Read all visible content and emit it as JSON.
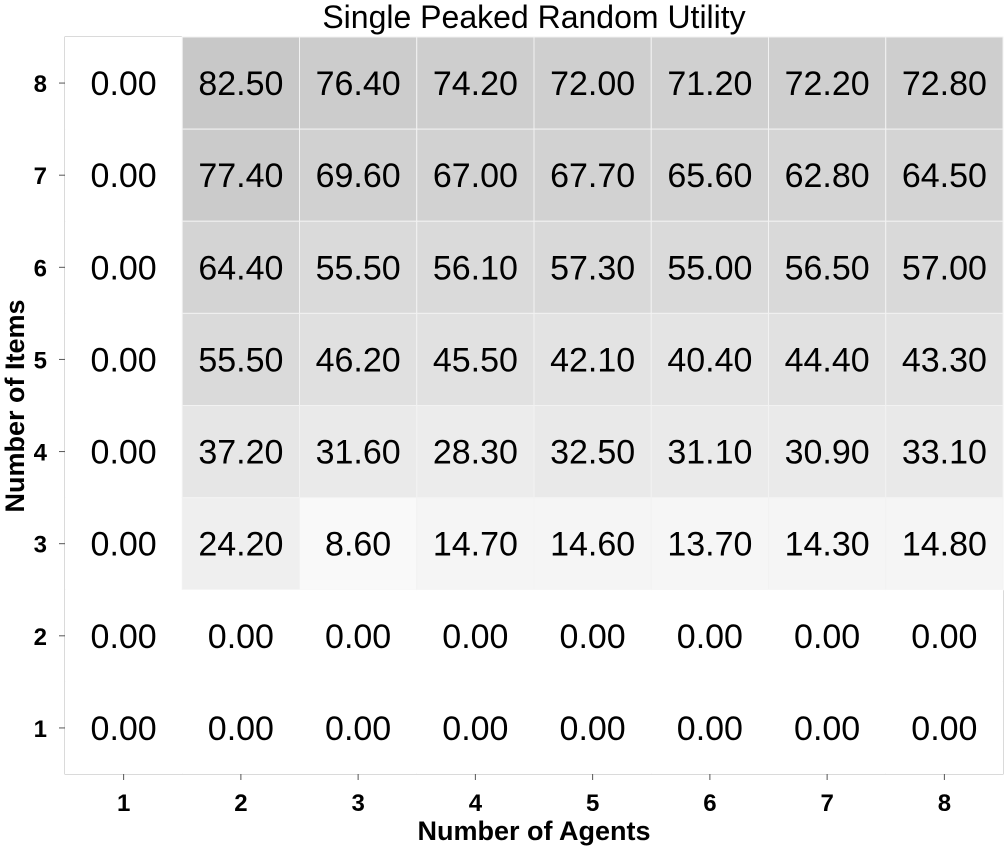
{
  "chart_data": {
    "type": "heatmap",
    "title": "Single Peaked Random Utility",
    "xlabel": "Number of Agents",
    "ylabel": "Number of Items",
    "x": [
      "1",
      "2",
      "3",
      "4",
      "5",
      "6",
      "7",
      "8"
    ],
    "y": [
      "8",
      "7",
      "6",
      "5",
      "4",
      "3",
      "2",
      "1"
    ],
    "values": [
      [
        0.0,
        82.5,
        76.4,
        74.2,
        72.0,
        71.2,
        72.2,
        72.8
      ],
      [
        0.0,
        77.4,
        69.6,
        67.0,
        67.7,
        65.6,
        62.8,
        64.5
      ],
      [
        0.0,
        64.4,
        55.5,
        56.1,
        57.3,
        55.0,
        56.5,
        57.0
      ],
      [
        0.0,
        55.5,
        46.2,
        45.5,
        42.1,
        40.4,
        44.4,
        43.3
      ],
      [
        0.0,
        37.2,
        31.6,
        28.3,
        32.5,
        31.1,
        30.9,
        33.1
      ],
      [
        0.0,
        24.2,
        8.6,
        14.7,
        14.6,
        13.7,
        14.3,
        14.8
      ],
      [
        0.0,
        0.0,
        0.0,
        0.0,
        0.0,
        0.0,
        0.0,
        0.0
      ],
      [
        0.0,
        0.0,
        0.0,
        0.0,
        0.0,
        0.0,
        0.0,
        0.0
      ]
    ],
    "labels": [
      [
        "0.00",
        "82.50",
        "76.40",
        "74.20",
        "72.00",
        "71.20",
        "72.20",
        "72.80"
      ],
      [
        "0.00",
        "77.40",
        "69.60",
        "67.00",
        "67.70",
        "65.60",
        "62.80",
        "64.50"
      ],
      [
        "0.00",
        "64.40",
        "55.50",
        "56.10",
        "57.30",
        "55.00",
        "56.50",
        "57.00"
      ],
      [
        "0.00",
        "55.50",
        "46.20",
        "45.50",
        "42.10",
        "40.40",
        "44.40",
        "43.30"
      ],
      [
        "0.00",
        "37.20",
        "31.60",
        "28.30",
        "32.50",
        "31.10",
        "30.90",
        "33.10"
      ],
      [
        "0.00",
        "24.20",
        "8.60",
        "14.70",
        "14.60",
        "13.70",
        "14.30",
        "14.80"
      ],
      [
        "0.00",
        "0.00",
        "0.00",
        "0.00",
        "0.00",
        "0.00",
        "0.00",
        "0.00"
      ],
      [
        "0.00",
        "0.00",
        "0.00",
        "0.00",
        "0.00",
        "0.00",
        "0.00",
        "0.00"
      ]
    ],
    "color_scale": {
      "low": "#ffffff",
      "high": "#c8c8c8",
      "domain": [
        0,
        82.5
      ]
    },
    "grid": true,
    "legend": "none"
  }
}
